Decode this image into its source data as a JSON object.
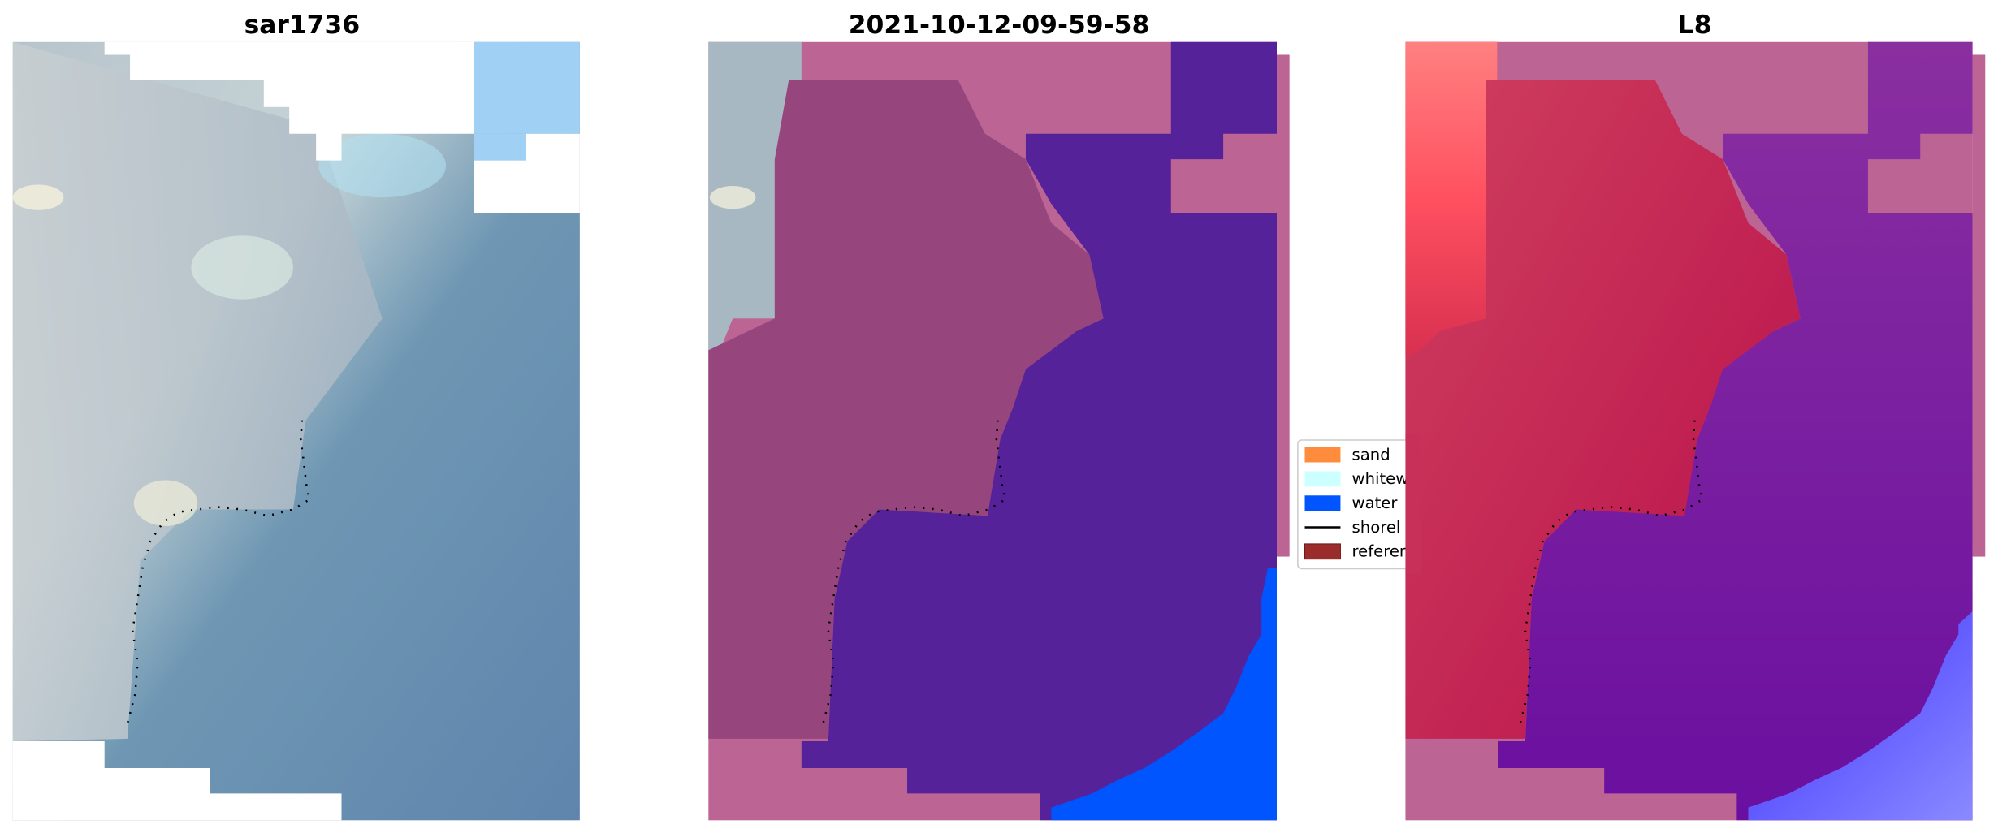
{
  "chart_data": {
    "type": "image-panels",
    "panels": [
      {
        "title": "sar1736",
        "content": "RGB satellite image with reference shoreline"
      },
      {
        "title": "2021-10-12-09-59-58",
        "content": "classified image overlay with reference shoreline"
      },
      {
        "title": "L8",
        "content": "index image overlay with reference shoreline"
      }
    ],
    "legend": {
      "placement": "center",
      "items": [
        {
          "label": "sand",
          "color": "#ff8c3c",
          "kind": "patch"
        },
        {
          "label": "whitew",
          "color": "#ccffff",
          "kind": "patch"
        },
        {
          "label": "water",
          "color": "#0055ff",
          "kind": "patch"
        },
        {
          "label": "shorel",
          "color": "#000000",
          "kind": "line"
        },
        {
          "label": "referer",
          "color": "#9a2c2c",
          "kind": "patch"
        }
      ]
    },
    "colors": {
      "no_data_pink": "#bc6595",
      "land_class": "#96457d",
      "water_class": "#55229a",
      "blue_class": "#0055ff",
      "shoreline_dots": "#000000"
    },
    "axes": "off"
  }
}
